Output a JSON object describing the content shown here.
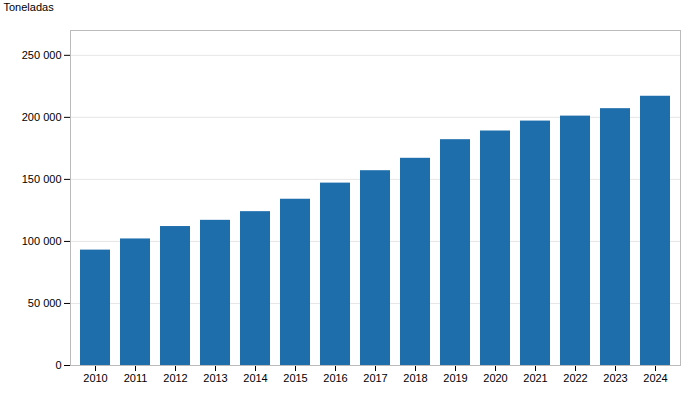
{
  "chart_data": {
    "type": "bar",
    "categories": [
      "2010",
      "2011",
      "2012",
      "2013",
      "2014",
      "2015",
      "2016",
      "2017",
      "2018",
      "2019",
      "2020",
      "2021",
      "2022",
      "2023",
      "2024"
    ],
    "values": [
      93000,
      102000,
      112000,
      117000,
      124000,
      134000,
      147000,
      157000,
      167000,
      182000,
      189000,
      197000,
      201000,
      207000,
      217000
    ],
    "color": "#1f6eac",
    "ylabel": "Toneladas",
    "ylim": [
      0,
      270000
    ],
    "yticks": [
      0,
      {
        "value": 50000,
        "label": "50 000"
      },
      {
        "value": 100000,
        "label": "100 000"
      },
      {
        "value": 150000,
        "label": "150 000"
      },
      {
        "value": 200000,
        "label": "200 000"
      },
      {
        "value": 250000,
        "label": "250 000"
      }
    ],
    "grid": true
  }
}
